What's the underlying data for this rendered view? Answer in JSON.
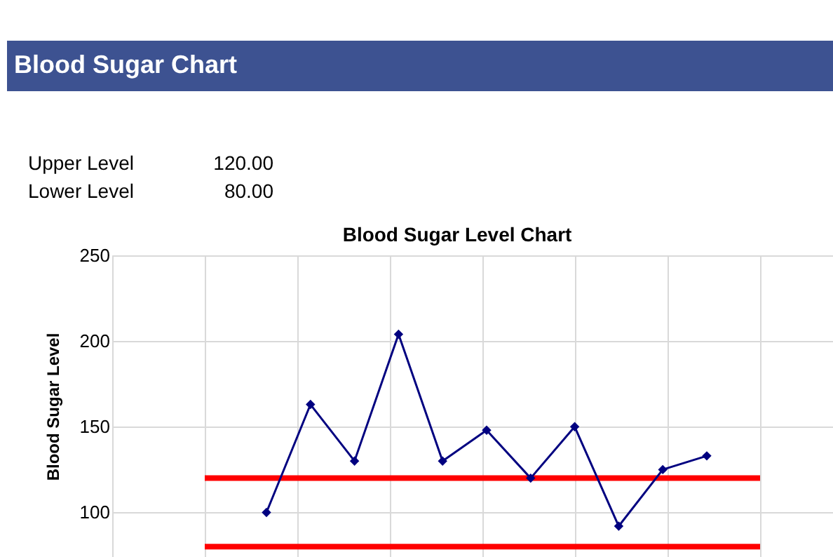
{
  "chart_data": {
    "type": "line",
    "title": "Blood Sugar Level Chart",
    "ylabel": "Blood Sugar Level",
    "annotations": [
      "Blood Sugar Chart",
      "Upper Level",
      "120.00",
      "Lower Level",
      "80.00"
    ],
    "categories": [
      null,
      null,
      null,
      null,
      null,
      null,
      null,
      null,
      null,
      null,
      null
    ],
    "series": [
      {
        "color": "#000080",
        "values": [
          100,
          163,
          130,
          204,
          130,
          148,
          120,
          150,
          92,
          125,
          133
        ]
      }
    ],
    "ref_lines": [
      {
        "axis": "y",
        "value": 120,
        "color": "#ff0000"
      },
      {
        "axis": "y",
        "value": 80,
        "color": "#ff0000"
      }
    ],
    "ylim": [
      74,
      250
    ],
    "yticks": [
      100,
      150,
      200,
      250
    ],
    "tick_labels": "y",
    "grid": true,
    "marker": "diamond",
    "line_style": "solid"
  }
}
